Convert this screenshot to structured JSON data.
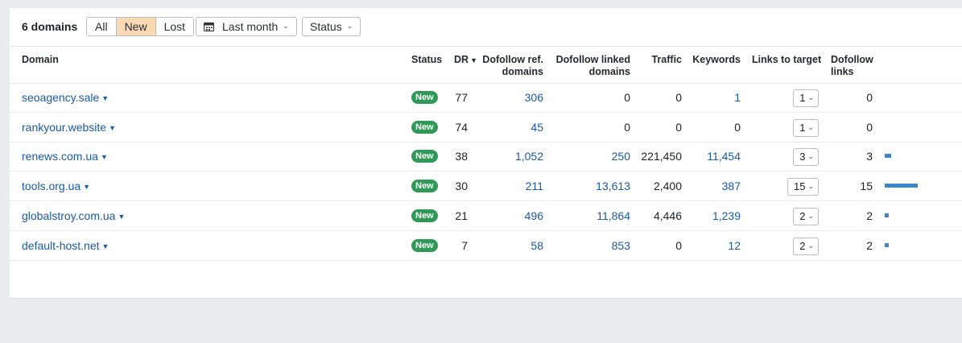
{
  "toolbar": {
    "count_label": "6 domains",
    "filters": [
      "All",
      "New",
      "Lost"
    ],
    "active_filter": "New",
    "date_label": "Last month",
    "status_label": "Status"
  },
  "columns": {
    "domain": "Domain",
    "status": "Status",
    "dr": "DR",
    "dofollow_ref_1": "Dofollow ref.",
    "dofollow_ref_2": "domains",
    "dofollow_linked_1": "Dofollow linked",
    "dofollow_linked_2": "domains",
    "traffic": "Traffic",
    "keywords": "Keywords",
    "links_to_target": "Links to target",
    "dofollow_links_1": "Dofollow",
    "dofollow_links_2": "links"
  },
  "rows": [
    {
      "domain": "seoagency.sale",
      "status": "New",
      "dr": "77",
      "ref": "306",
      "linked": "0",
      "traffic": "0",
      "keywords": "1",
      "links": "1",
      "dofollow": "0",
      "bar": 0
    },
    {
      "domain": "rankyour.website",
      "status": "New",
      "dr": "74",
      "ref": "45",
      "linked": "0",
      "traffic": "0",
      "keywords": "0",
      "links": "1",
      "dofollow": "0",
      "bar": 0
    },
    {
      "domain": "renews.com.ua",
      "status": "New",
      "dr": "38",
      "ref": "1,052",
      "linked": "250",
      "traffic": "221,450",
      "keywords": "11,454",
      "links": "3",
      "dofollow": "3",
      "bar": 3
    },
    {
      "domain": "tools.org.ua",
      "status": "New",
      "dr": "30",
      "ref": "211",
      "linked": "13,613",
      "traffic": "2,400",
      "keywords": "387",
      "links": "15",
      "dofollow": "15",
      "bar": 15
    },
    {
      "domain": "globalstroy.com.ua",
      "status": "New",
      "dr": "21",
      "ref": "496",
      "linked": "11,864",
      "traffic": "4,446",
      "keywords": "1,239",
      "links": "2",
      "dofollow": "2",
      "bar": 2
    },
    {
      "domain": "default-host.net",
      "status": "New",
      "dr": "7",
      "ref": "58",
      "linked": "853",
      "traffic": "0",
      "keywords": "12",
      "links": "2",
      "dofollow": "2",
      "bar": 2
    }
  ],
  "colors": {
    "accent_link": "#1a5aa8",
    "badge_green": "#2f9a55",
    "bar_blue": "#3d86c8",
    "active_filter": "#fbd9b5"
  }
}
